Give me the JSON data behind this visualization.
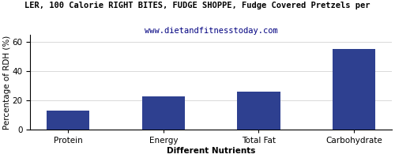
{
  "categories": [
    "Protein",
    "Energy",
    "Total Fat",
    "Carbohydrate"
  ],
  "values": [
    13,
    23,
    26,
    55
  ],
  "bar_color": "#2e4090",
  "title": "LER, 100 Calorie RIGHT BITES, FUDGE SHOPPE, Fudge Covered Pretzels per",
  "subtitle": "www.dietandfitnesstoday.com",
  "ylabel": "Percentage of RDH (%)",
  "xlabel": "Different Nutrients",
  "ylim": [
    0,
    65
  ],
  "yticks": [
    0,
    20,
    40,
    60
  ],
  "title_fontsize": 7.5,
  "subtitle_fontsize": 7.5,
  "axis_label_fontsize": 7.5,
  "tick_fontsize": 7.5,
  "bar_width": 0.45
}
